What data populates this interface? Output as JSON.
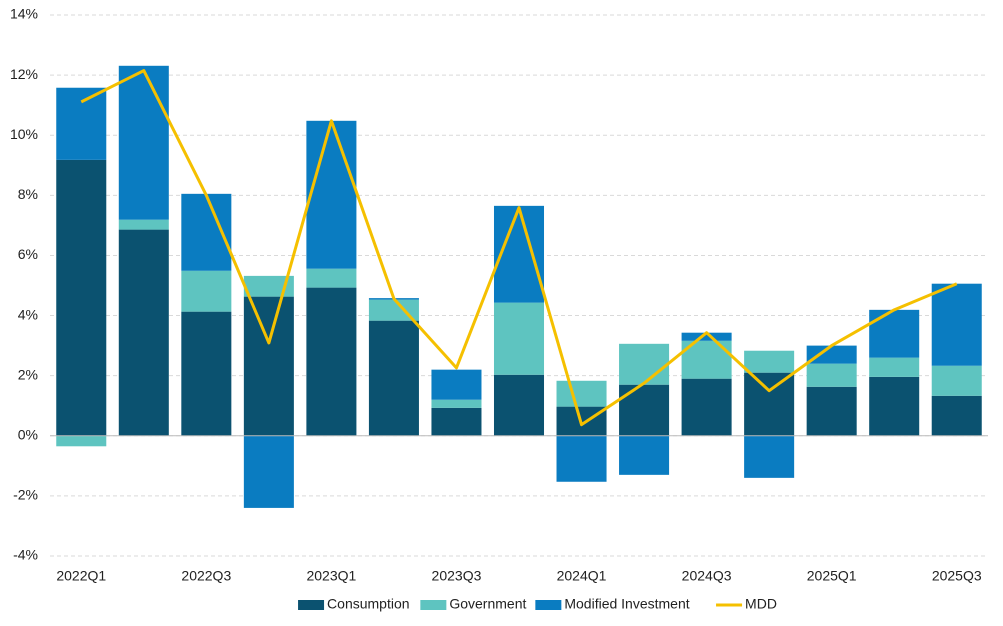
{
  "chart_data": {
    "type": "stacked-bar-line",
    "categories": [
      "2022Q1",
      null,
      "2022Q3",
      null,
      "2023Q1",
      null,
      "2023Q3",
      null,
      "2024Q1",
      null,
      "2024Q3",
      null,
      "2025Q1",
      null,
      "2025Q3"
    ],
    "series": [
      {
        "name": "Consumption",
        "color": "#0b5270",
        "kind": "bar",
        "values": [
          9.18,
          6.86,
          4.13,
          4.63,
          4.93,
          3.83,
          0.93,
          2.03,
          0.97,
          1.7,
          1.9,
          2.1,
          1.63,
          1.96,
          1.33
        ]
      },
      {
        "name": "Government",
        "color": "#5ec4c0",
        "kind": "bar",
        "values": [
          -0.35,
          0.33,
          1.36,
          0.69,
          0.63,
          0.7,
          0.27,
          2.4,
          0.86,
          1.36,
          1.26,
          0.73,
          0.77,
          0.64,
          1.0
        ]
      },
      {
        "name": "Modified Investment",
        "color": "#0a7cc1",
        "kind": "bar",
        "values": [
          2.4,
          5.12,
          2.56,
          -2.4,
          4.92,
          0.05,
          1.0,
          3.22,
          -1.53,
          -1.3,
          0.27,
          -1.4,
          0.6,
          1.59,
          2.73
        ]
      },
      {
        "name": "MDD",
        "color": "#f5c000",
        "kind": "line",
        "values": [
          11.11,
          12.15,
          8.0,
          3.09,
          10.48,
          4.56,
          2.26,
          7.59,
          0.37,
          1.75,
          3.43,
          1.5,
          3.0,
          4.19,
          5.06
        ]
      }
    ],
    "ylim": [
      -4,
      14
    ],
    "yticks": [
      {
        "value": -4,
        "label": "-4%"
      },
      {
        "value": -2,
        "label": "-2%"
      },
      {
        "value": 0,
        "label": "0%"
      },
      {
        "value": 2,
        "label": "2%"
      },
      {
        "value": 4,
        "label": "4%"
      },
      {
        "value": 6,
        "label": "6%"
      },
      {
        "value": 8,
        "label": "8%"
      },
      {
        "value": 10,
        "label": "10%"
      },
      {
        "value": 12,
        "label": "12%"
      },
      {
        "value": 14,
        "label": "14%"
      }
    ],
    "grid": true,
    "legend": "bottom"
  }
}
